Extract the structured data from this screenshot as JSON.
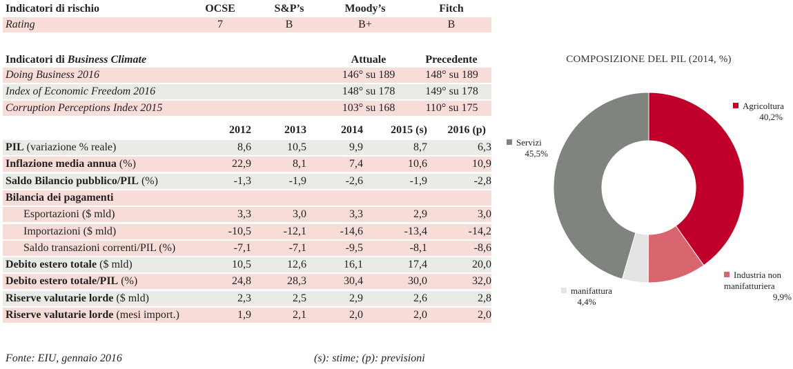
{
  "rating": {
    "header": {
      "label": "Indicatori di rischio",
      "cols": [
        "OCSE",
        "S&P’s",
        "Moody’s",
        "Fitch"
      ]
    },
    "row": {
      "label": "Rating",
      "values": [
        "7",
        "B",
        "B+",
        "B"
      ]
    }
  },
  "business": {
    "header_prefix": "Indicatori di ",
    "header_italic": "Business Climate",
    "cols": [
      "Attuale",
      "Precedente"
    ],
    "rows": [
      {
        "label": "Doing Business 2016",
        "current": "146° su 189",
        "previous": "148° su 189"
      },
      {
        "label": "Index of Economic Freedom 2016",
        "current": "148° su 178",
        "previous": "149° su 178"
      },
      {
        "label": "Corruption Perceptions Index 2015",
        "current": "103° su 168",
        "previous": "110° su 175"
      }
    ]
  },
  "macro": {
    "years": [
      "2012",
      "2013",
      "2014",
      "2015 (s)",
      "2016 (p)"
    ],
    "rows": [
      {
        "bold": "PIL",
        "rest": " (variazione % reale)",
        "values": [
          "8,6",
          "10,5",
          "9,9",
          "8,7",
          "6,3"
        ]
      },
      {
        "bold": "Inflazione media annua",
        "rest": " (%)",
        "values": [
          "22,9",
          "8,1",
          "7,4",
          "10,6",
          "10,9"
        ]
      },
      {
        "bold": "Saldo Bilancio pubblico/PIL",
        "rest": " (%)",
        "values": [
          "-1,3",
          "-1,9",
          "-2,6",
          "-1,9",
          "-2,8"
        ]
      },
      {
        "bold": "Bilancia dei pagamenti",
        "rest": "",
        "values": [
          "",
          "",
          "",
          "",
          ""
        ]
      },
      {
        "bold": "",
        "rest": "Esportazioni ($ mld)",
        "values": [
          "3,3",
          "3,0",
          "3,3",
          "2,9",
          "3,0"
        ]
      },
      {
        "bold": "",
        "rest": "Importazioni ($ mld)",
        "values": [
          "-10,5",
          "-12,1",
          "-14,6",
          "-13,4",
          "-14,2"
        ]
      },
      {
        "bold": "",
        "rest": "Saldo transazioni correnti/PIL (%)",
        "values": [
          "-7,1",
          "-7,1",
          "-9,5",
          "-8,1",
          "-8,6"
        ]
      },
      {
        "bold": "Debito estero totale",
        "rest": " ($ mld)",
        "values": [
          "10,5",
          "12,6",
          "16,1",
          "17,4",
          "20,0"
        ]
      },
      {
        "bold": "Debito estero totale/PIL",
        "rest": " (%)",
        "values": [
          "24,8",
          "28,3",
          "30,4",
          "30,0",
          "32,0"
        ]
      },
      {
        "bold": "Riserve valutarie lorde",
        "rest": " ($ mld)",
        "values": [
          "2,3",
          "2,5",
          "2,9",
          "2,6",
          "2,8"
        ]
      },
      {
        "bold": "Riserve valutarie lorde",
        "rest": " (mesi import.)",
        "values": [
          "1,9",
          "2,1",
          "2,0",
          "2,0",
          "2,0"
        ]
      }
    ]
  },
  "footer": {
    "source": "Fonte: EIU, gennaio 2016",
    "note": "(s): stime; (p): previsioni"
  },
  "chart_data": {
    "type": "pie",
    "donut": true,
    "title": "COMPOSIZIONE DEL PIL (2014, %)",
    "slices": [
      {
        "label": "Agricoltura",
        "value": 40.2,
        "value_label": "40,2%",
        "color": "#c0002a"
      },
      {
        "label": "Industria non manifatturiera",
        "value": 9.9,
        "value_label": "9,9%",
        "color": "#d9656f"
      },
      {
        "label": "manifattura",
        "value": 4.4,
        "value_label": "4,4%",
        "color": "#e4e4e4"
      },
      {
        "label": "Servizi",
        "value": 45.5,
        "value_label": "45,5%",
        "color": "#7f857e"
      }
    ]
  }
}
